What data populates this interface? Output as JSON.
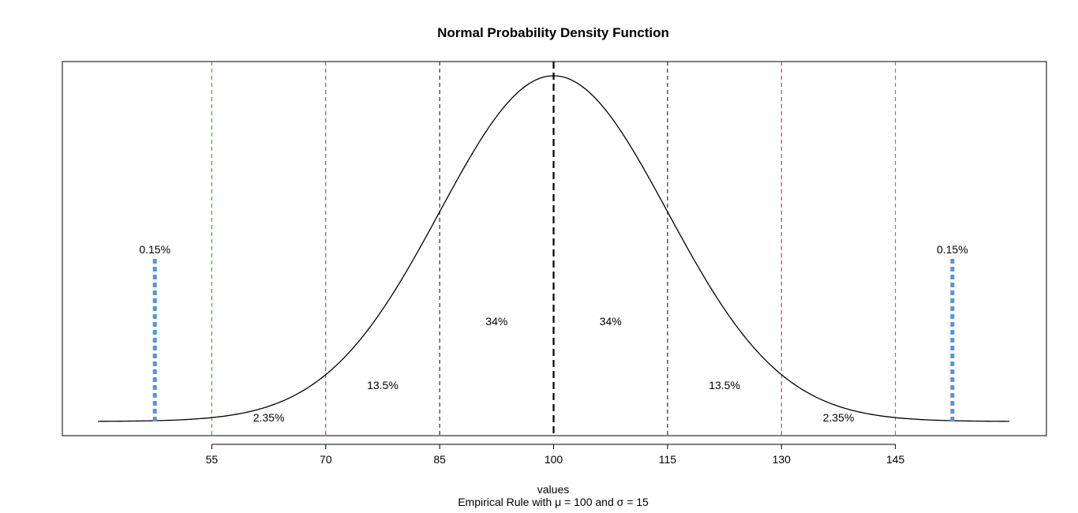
{
  "chart_data": {
    "type": "line",
    "title": "Normal Probability Density Function",
    "xlabel": "values",
    "subtitle": "Empirical Rule with μ = 100 and σ = 15",
    "mean": 100,
    "sd": 15,
    "xlim": [
      40,
      160
    ],
    "x_ticks": [
      "55",
      "70",
      "85",
      "100",
      "115",
      "130",
      "145"
    ],
    "y_axis_shown": false,
    "grid": false,
    "series": [
      {
        "kind": "density-curve",
        "color": "#000000",
        "x_range": [
          40,
          160
        ]
      }
    ],
    "reference_lines": [
      {
        "x": 55,
        "color": "#1a9e1a",
        "style": "dashed"
      },
      {
        "x": 70,
        "color": "#b22222",
        "style": "dashed"
      },
      {
        "x": 85,
        "color": "#000000",
        "style": "dashed"
      },
      {
        "x": 100,
        "color": "#000000",
        "style": "dashed-bold"
      },
      {
        "x": 115,
        "color": "#000000",
        "style": "dashed"
      },
      {
        "x": 130,
        "color": "#b22222",
        "style": "dashed"
      },
      {
        "x": 145,
        "color": "#1a9e1a",
        "style": "dashed"
      }
    ],
    "tail_markers": [
      {
        "x": 47.5,
        "label": "0.15%",
        "color": "#5b93d6"
      },
      {
        "x": 152.5,
        "label": "0.15%",
        "color": "#5b93d6"
      }
    ],
    "region_labels": [
      {
        "x": 62.5,
        "label": "2.35%"
      },
      {
        "x": 77.5,
        "label": "13.5%"
      },
      {
        "x": 92.5,
        "label": "34%"
      },
      {
        "x": 107.5,
        "label": "34%"
      },
      {
        "x": 122.5,
        "label": "13.5%"
      },
      {
        "x": 137.5,
        "label": "2.35%"
      }
    ]
  }
}
